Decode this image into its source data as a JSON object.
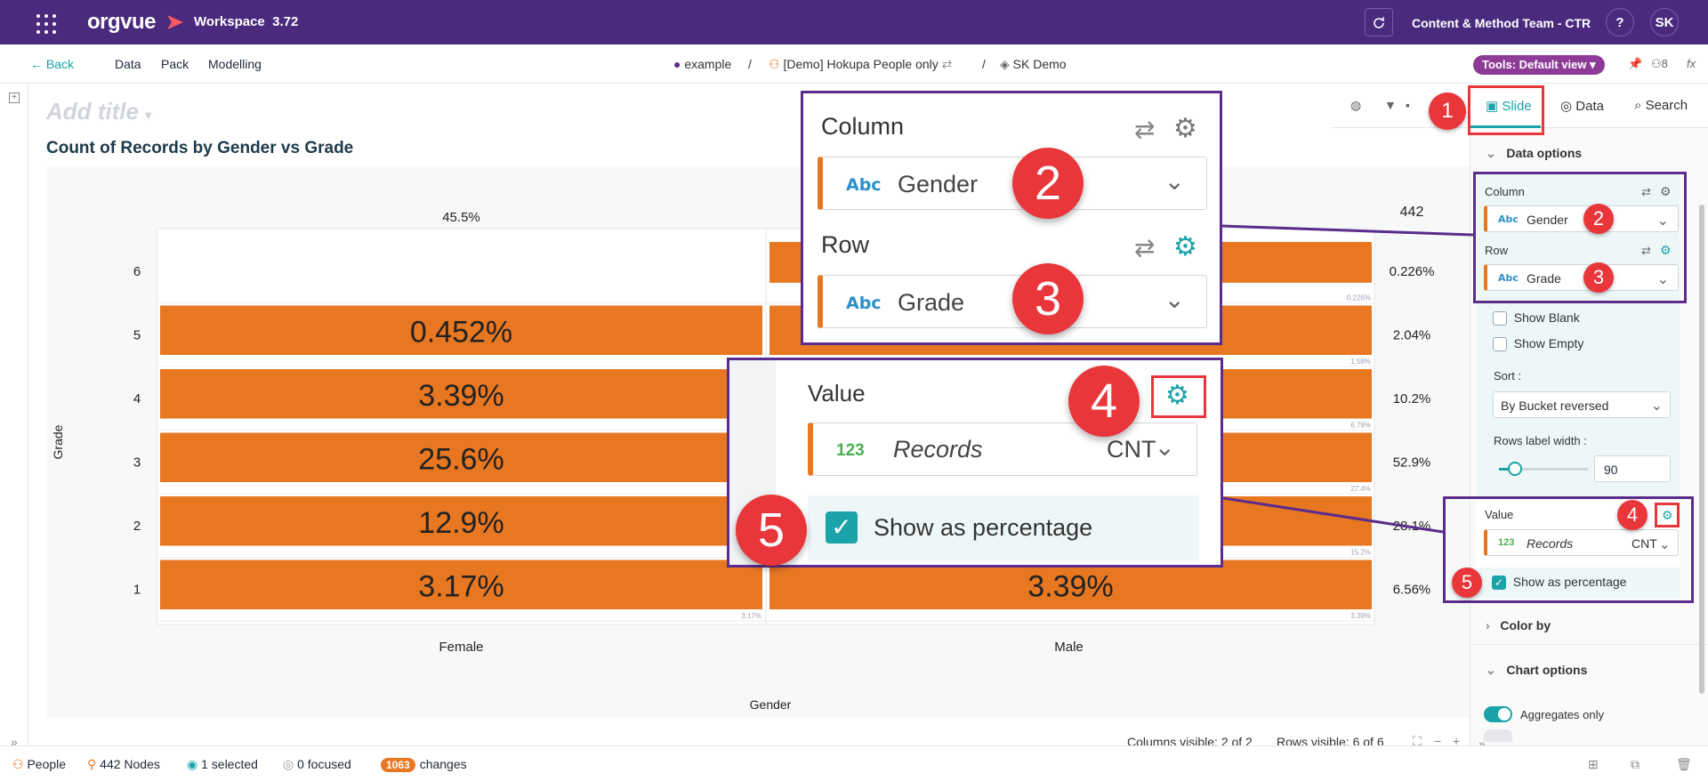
{
  "topbar": {
    "logo": "orgvue",
    "workspace": "Workspace",
    "version": "3.72",
    "team": "Content & Method Team - CTR",
    "help": "?",
    "avatar": "SK"
  },
  "nav": {
    "back": "Back",
    "items": [
      "Data",
      "Pack",
      "Modelling"
    ],
    "breadcrumb": [
      "example",
      "/",
      "[Demo] Hokupa People only",
      "/",
      "SK Demo"
    ],
    "tools": "Tools: Default view",
    "count": "8",
    "fx": "fx"
  },
  "main": {
    "add_title": "Add title"
  },
  "chart_data": {
    "type": "table",
    "title": "Count of Records by Gender vs Grade",
    "xlabel": "Gender",
    "ylabel": "Grade",
    "columns": [
      "Female",
      "Male"
    ],
    "column_totals": [
      "45.5%",
      ""
    ],
    "grand_total": "442",
    "rows": [
      "6",
      "5",
      "4",
      "3",
      "2",
      "1"
    ],
    "row_totals": [
      "0.226%",
      "2.04%",
      "10.2%",
      "52.9%",
      "28.1%",
      "6.56%"
    ],
    "female_values": [
      0,
      0.452,
      3.39,
      25.6,
      12.9,
      3.17
    ],
    "female_labels": [
      "",
      "0.452%",
      "3.39%",
      "25.6%",
      "12.9%",
      "3.17%"
    ],
    "male_values": [
      0.226,
      1.58,
      6.79,
      27.4,
      15.2,
      3.39
    ],
    "male_labels": [
      "",
      "",
      "",
      "",
      "",
      "3.39%"
    ],
    "male_small_labels": [
      "0.226%",
      "1.58%",
      "6.79%",
      "27.4%",
      "15.2%",
      "3.39%"
    ],
    "female_small_labels": [
      "",
      "",
      "",
      "",
      "",
      "3.17%"
    ],
    "bar_color": "#e87722"
  },
  "panel": {
    "tabs": [
      "Slide",
      "Data",
      "Search"
    ],
    "data_options": "Data options",
    "column_label": "Column",
    "column_value": "Gender",
    "row_label": "Row",
    "row_value": "Grade",
    "show_blank": "Show Blank",
    "show_empty": "Show Empty",
    "sort_label": "Sort :",
    "sort_value": "By Bucket reversed",
    "rows_label_width": "Rows label width :",
    "rows_label_width_value": "90",
    "value_label": "Value",
    "value_field": "Records",
    "value_agg": "CNT",
    "show_as_percentage": "Show as percentage",
    "color_by": "Color by",
    "chart_options": "Chart options",
    "aggregates_only": "Aggregates only",
    "abc": "Abc",
    "num": "123"
  },
  "callouts": {
    "b1": "1",
    "b2": "2",
    "b3": "3",
    "b4": "4",
    "b5": "5"
  },
  "footer": {
    "columns_visible": "Columns visible: 2 of 2",
    "rows_visible": "Rows visible: 6 of 6"
  },
  "status": {
    "people": "People",
    "nodes": "442 Nodes",
    "selected": "1 selected",
    "focused": "0 focused",
    "changes_count": "1063",
    "changes": "changes"
  }
}
